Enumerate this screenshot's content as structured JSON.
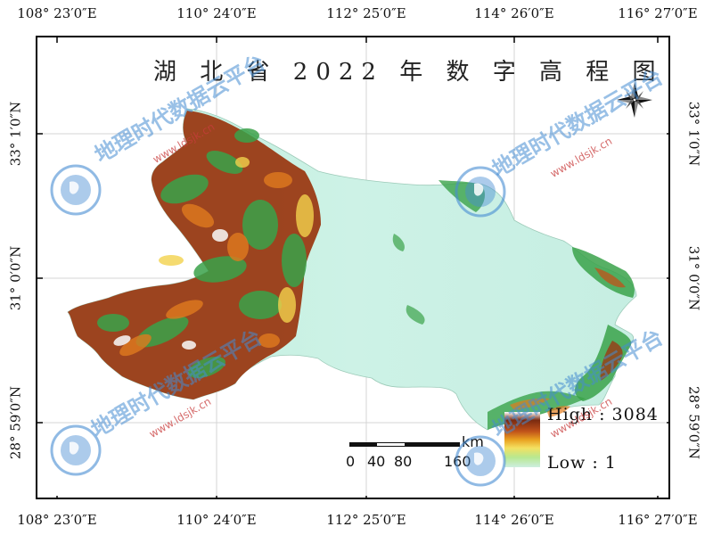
{
  "map": {
    "title": "湖 北 省 2022 年 数 字 高 程 图",
    "longitude_labels": [
      "108° 23′0″E",
      "110° 24′0″E",
      "112° 25′0″E",
      "114° 26′0″E",
      "116° 27′0″E"
    ],
    "latitude_labels": [
      "33° 1′0″N",
      "31° 0′0″N",
      "28° 59′0″N"
    ],
    "legend": {
      "high_label": "High : 3084",
      "low_label": "Low : 1",
      "colors": [
        "#7a2a10",
        "#c0521a",
        "#e8a020",
        "#f4e060",
        "#b8e890",
        "#cdeee0"
      ]
    },
    "scale_bar": {
      "unit": "km",
      "ticks": [
        "0",
        "40",
        "80",
        "160"
      ]
    },
    "north_arrow": "compass-rose-icon"
  },
  "watermark": {
    "text": "地理时代数据云平台",
    "url": "www.ldsjk.cn",
    "seal_icon": "globe-seal-icon",
    "color": "#468cd2"
  }
}
